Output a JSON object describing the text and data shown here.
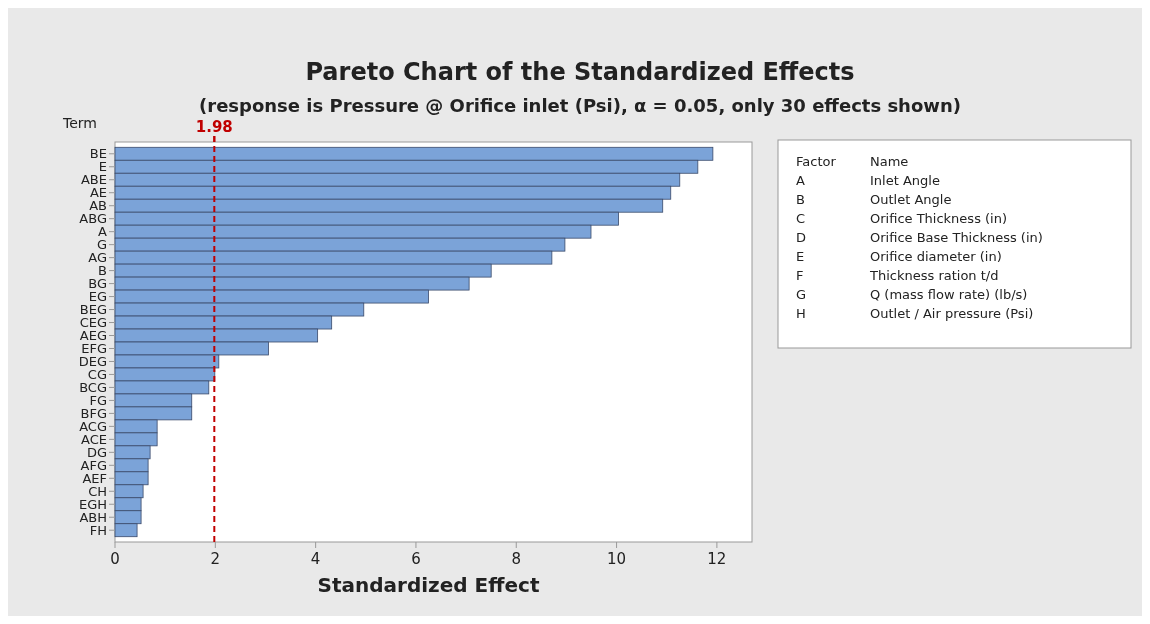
{
  "chart_data": {
    "type": "bar",
    "orientation": "horizontal",
    "title": "Pareto Chart of the Standardized Effects",
    "subtitle": "(response is Pressure @ Orifice inlet (Psi), α = 0.05, only 30 effects shown)",
    "xlabel": "Standardized Effect",
    "ylabel": "Term",
    "categories": [
      "BE",
      "E",
      "ABE",
      "AE",
      "AB",
      "ABG",
      "A",
      "G",
      "AG",
      "B",
      "BG",
      "EG",
      "BEG",
      "CEG",
      "AEG",
      "EFG",
      "DEG",
      "CG",
      "BCG",
      "FG",
      "BFG",
      "ACG",
      "ACE",
      "DG",
      "AFG",
      "AEF",
      "CH",
      "EGH",
      "ABH",
      "FH"
    ],
    "values": [
      11.92,
      11.62,
      11.26,
      11.08,
      10.92,
      10.04,
      9.49,
      8.97,
      8.71,
      7.5,
      7.06,
      6.25,
      4.96,
      4.32,
      4.04,
      3.06,
      2.07,
      1.99,
      1.87,
      1.53,
      1.53,
      0.84,
      0.84,
      0.7,
      0.66,
      0.66,
      0.56,
      0.52,
      0.52,
      0.44
    ],
    "color": "#7ba3d8",
    "xlim": [
      0,
      12.7
    ],
    "xticks": [
      0,
      2,
      4,
      6,
      8,
      10,
      12
    ],
    "grid": false,
    "ref_lines": [
      {
        "axis": "x",
        "value": 1.98,
        "label": "1.98",
        "color": "#c00000",
        "line_style": "dashed"
      }
    ],
    "annotations": [
      "Factor Name",
      "A Inlet Angle",
      "B Outlet Angle",
      "C Orifice Thickness (in)",
      "D Orifice Base Thickness (in)",
      "E Orifice diameter (in)",
      "F Thickness ration t/d",
      "G Q (mass flow rate) (lb/s)",
      "H Outlet / Air pressure (Psi)"
    ]
  }
}
